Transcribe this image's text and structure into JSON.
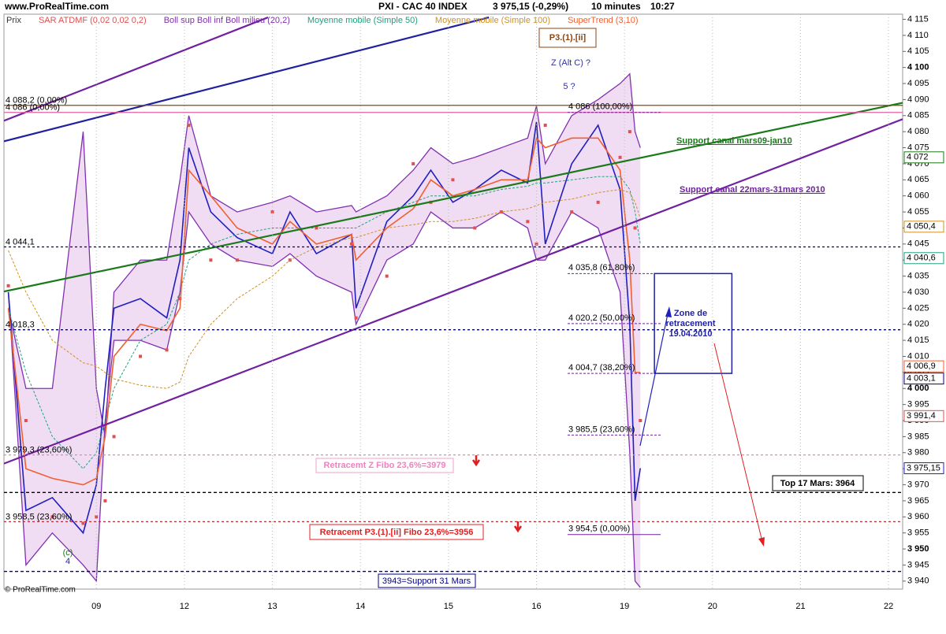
{
  "chart_data": {
    "type": "line",
    "site": "www.ProRealTime.com",
    "title": "PXI - CAC 40 INDEX",
    "last_price": "3 975,15 (-0,29%)",
    "interval": "10 minutes",
    "time": "10:27",
    "copyright": "© ProRealTime.com",
    "xlim": [
      -0.05,
      10.16
    ],
    "ylim": [
      3937.5,
      4116.6
    ],
    "xticks": [
      {
        "value": 1,
        "label": "09"
      },
      {
        "value": 2,
        "label": "12"
      },
      {
        "value": 3,
        "label": "13"
      },
      {
        "value": 4,
        "label": "14"
      },
      {
        "value": 5,
        "label": "15"
      },
      {
        "value": 6,
        "label": "16"
      },
      {
        "value": 7,
        "label": "19"
      },
      {
        "value": 8,
        "label": "20"
      },
      {
        "value": 9,
        "label": "21"
      },
      {
        "value": 10,
        "label": "22"
      }
    ],
    "yticks": [
      {
        "value": 3940,
        "label": "3 940"
      },
      {
        "value": 3945,
        "label": "3 945"
      },
      {
        "value": 3950,
        "label": "3 950"
      },
      {
        "value": 3955,
        "label": "3 955"
      },
      {
        "value": 3960,
        "label": "3 960"
      },
      {
        "value": 3965,
        "label": "3 965"
      },
      {
        "value": 3970,
        "label": "3 970"
      },
      {
        "value": 3975,
        "label": "3 975"
      },
      {
        "value": 3980,
        "label": "3 980"
      },
      {
        "value": 3985,
        "label": "3 985"
      },
      {
        "value": 3990,
        "label": "3 990"
      },
      {
        "value": 3995,
        "label": "3 995"
      },
      {
        "value": 4000,
        "label": "4 000"
      },
      {
        "value": 4005,
        "label": "4 005"
      },
      {
        "value": 4010,
        "label": "4 010"
      },
      {
        "value": 4015,
        "label": "4 015"
      },
      {
        "value": 4020,
        "label": "4 020"
      },
      {
        "value": 4025,
        "label": "4 025"
      },
      {
        "value": 4030,
        "label": "4 030"
      },
      {
        "value": 4035,
        "label": "4 035"
      },
      {
        "value": 4040,
        "label": "4 040"
      },
      {
        "value": 4045,
        "label": "4 045"
      },
      {
        "value": 4050,
        "label": "4 050"
      },
      {
        "value": 4055,
        "label": "4 055"
      },
      {
        "value": 4060,
        "label": "4 060"
      },
      {
        "value": 4065,
        "label": "4 065"
      },
      {
        "value": 4070,
        "label": "4 070"
      },
      {
        "value": 4075,
        "label": "4 075"
      },
      {
        "value": 4080,
        "label": "4 080"
      },
      {
        "value": 4085,
        "label": "4 085"
      },
      {
        "value": 4090,
        "label": "4 090"
      },
      {
        "value": 4095,
        "label": "4 095"
      },
      {
        "value": 4100,
        "label": "4 100"
      },
      {
        "value": 4105,
        "label": "4 105"
      },
      {
        "value": 4110,
        "label": "4 110"
      },
      {
        "value": 4115,
        "label": "4 115"
      }
    ],
    "x": [
      0,
      0.2,
      0.5,
      0.85,
      1.0,
      1.1,
      1.2,
      1.5,
      1.8,
      1.95,
      2.05,
      2.3,
      2.6,
      3.0,
      3.2,
      3.5,
      3.9,
      3.95,
      4.3,
      4.6,
      4.8,
      5.05,
      5.3,
      5.6,
      5.9,
      6.0,
      6.1,
      6.4,
      6.7,
      6.95,
      7.06,
      7.12,
      7.18
    ],
    "series": [
      {
        "name": "Prix",
        "color": "#2020c0",
        "style": "line",
        "values": [
          4030,
          3962,
          3966,
          3955,
          3970,
          4000,
          4025,
          4028,
          4022,
          4040,
          4075,
          4055,
          4047,
          4042,
          4055,
          4042,
          4048,
          4025,
          4052,
          4060,
          4068,
          4058,
          4062,
          4068,
          4064,
          4083,
          4045,
          4070,
          4082,
          4062,
          4020,
          3965,
          3975.15
        ]
      },
      {
        "name": "SAR ATDMF (0,02 0,02 0,2)",
        "color": "#e05050",
        "style": "dots",
        "values": [
          4032,
          3990,
          3960,
          3958,
          3960,
          3965,
          3985,
          4010,
          4012,
          4028,
          4082,
          4040,
          4040,
          4055,
          4040,
          4050,
          4045,
          4022,
          4035,
          4070,
          4058,
          4065,
          4050,
          4055,
          4052,
          4045,
          4082,
          4055,
          4058,
          4072,
          4080,
          4050,
          3990
        ]
      },
      {
        "name": "Boll sup Boll inf Boll milieu (20,2)",
        "color": "#8030b0",
        "style": "band",
        "values": [
          4025,
          4000,
          4000,
          4080,
          4000,
          3985,
          4030,
          4040,
          4040,
          4065,
          4085,
          4060,
          4055,
          4058,
          4060,
          4055,
          4057,
          4055,
          4060,
          4068,
          4075,
          4070,
          4072,
          4075,
          4078,
          4088,
          4070,
          4085,
          4090,
          4095,
          4098,
          4080,
          4075
        ],
        "lower": [
          4030,
          3945,
          3955,
          3945,
          3940,
          3990,
          4015,
          4015,
          4012,
          4030,
          4055,
          4045,
          4040,
          4038,
          4042,
          4035,
          4030,
          4020,
          4040,
          4045,
          4055,
          4050,
          4050,
          4055,
          4050,
          4040,
          4040,
          4055,
          4050,
          4030,
          3980,
          3940,
          3938
        ]
      },
      {
        "name": "Moyenne mobile (Simple 50)",
        "color": "#20a080",
        "style": "dash",
        "values": [
          4025,
          4005,
          3985,
          3975,
          3980,
          3990,
          4000,
          4015,
          4020,
          4030,
          4040,
          4045,
          4048,
          4050,
          4050,
          4050,
          4050,
          4050,
          4055,
          4058,
          4060,
          4060,
          4060,
          4062,
          4063,
          4064,
          4064,
          4065,
          4066,
          4066,
          4062,
          4055,
          4045
        ]
      },
      {
        "name": "Moyenne mobile (Simple 100)",
        "color": "#d09020",
        "style": "dash",
        "values": [
          4043,
          4030,
          4015,
          4008,
          4007,
          4005,
          4003,
          4001,
          4000,
          4002,
          4010,
          4020,
          4028,
          4035,
          4040,
          4044,
          4047,
          4047,
          4050,
          4051,
          4052,
          4052,
          4053,
          4055,
          4056,
          4057,
          4058,
          4059,
          4061,
          4062,
          4061,
          4058,
          4053
        ]
      },
      {
        "name": "SuperTrend (3,10)",
        "color": "#f06030",
        "style": "line",
        "values": [
          4025,
          3975,
          3972,
          3970,
          3972,
          3985,
          4010,
          4020,
          4018,
          4025,
          4068,
          4060,
          4050,
          4045,
          4052,
          4045,
          4048,
          4040,
          4050,
          4056,
          4065,
          4060,
          4062,
          4065,
          4065,
          4078,
          4075,
          4078,
          4078,
          4068,
          4040,
          4005,
          4005
        ]
      }
    ],
    "levels": [
      {
        "value": 4088.2,
        "label": "4 088,2 (0,00%)",
        "color": "#8b4513",
        "dash": "none"
      },
      {
        "value": 4086,
        "label": "4 086 (0,00%)",
        "color": "#e060a0",
        "dash": "none"
      },
      {
        "value": 4044.1,
        "label": "4 044,1",
        "color": "#000080",
        "dash": "3,3"
      },
      {
        "value": 4018.3,
        "label": "4 018,3",
        "color": "#000080",
        "dash": "3,3"
      },
      {
        "value": 3979.3,
        "label": "3 979,3 (23,60%)",
        "color": "#f080c0",
        "dash": "3,3"
      },
      {
        "value": 3967.6,
        "color": "#000000",
        "dash": "4,3"
      },
      {
        "value": 3958.5,
        "label": "3 958,5 (23,60%)",
        "color": "#e02020",
        "dash": "3,3"
      },
      {
        "value": 3943,
        "color": "#000080",
        "dash": "4,3"
      }
    ],
    "fibo": [
      {
        "value": 4086,
        "label": "4 086 (100,00%)"
      },
      {
        "value": 4035.8,
        "label": "4 035,8 (61,80%)"
      },
      {
        "value": 4020.2,
        "label": "4 020,2 (50,00%)"
      },
      {
        "value": 4004.7,
        "label": "4 004,7 (38,20%)"
      },
      {
        "value": 3985.5,
        "label": "3 985,5 (23,60%)"
      },
      {
        "value": 3954.5,
        "label": "3 954,5 (0,00%)"
      }
    ],
    "trendlines": [
      {
        "x": [
          -0.05,
          10.16
        ],
        "y": [
          4030.2,
          4089
        ],
        "color": "#1a7a1a",
        "label": "Support canal mars09-jan10"
      },
      {
        "x": [
          -0.05,
          10.16
        ],
        "y": [
          3976.6,
          4083.9
        ],
        "color": "#7020a0",
        "label": "Support canal 22mars-31mars 2010"
      },
      {
        "x": [
          -0.05,
          2.95
        ],
        "y": [
          4083.4,
          4115.6
        ],
        "color": "#7020a0"
      },
      {
        "x": [
          -0.05,
          5.46
        ],
        "y": [
          4077,
          4115.6
        ],
        "color": "#2020a0"
      }
    ],
    "zone": {
      "x": [
        7.34,
        8.22
      ],
      "y": [
        4004.7,
        4035.8
      ],
      "label": "Zone de retracement 19.04.2010"
    },
    "price_tags": [
      {
        "value": 4072,
        "label": "4 072",
        "color": "#1a7a1a"
      },
      {
        "value": 4050.4,
        "label": "4 050,4",
        "color": "#d09020"
      },
      {
        "value": 4040.6,
        "label": "4 040,6",
        "color": "#20a080"
      },
      {
        "value": 4006.9,
        "label": "4 006,9",
        "color": "#f06030"
      },
      {
        "value": 4003.1,
        "label": "4 003,1",
        "color": "#000080"
      },
      {
        "value": 3991.4,
        "label": "3 991,4",
        "color": "#e05050"
      },
      {
        "value": 3975.15,
        "label": "3 975,15",
        "color": "#2020c0"
      }
    ],
    "annotations": {
      "wave_box": "P3.(1).[ii]",
      "wave_z": "Z (Alt C) ?",
      "wave_5": "5 ?",
      "retr_z": "Retracemt Z Fibo 23,6%=3979",
      "retr_p3": "Retracemt P3.(1).[ii] Fibo 23,6%=3956",
      "top_17": "Top 17 Mars: 3964",
      "support_31": "3943=Support 31 Mars",
      "wave_c": "(c)",
      "wave_4": "4"
    }
  }
}
